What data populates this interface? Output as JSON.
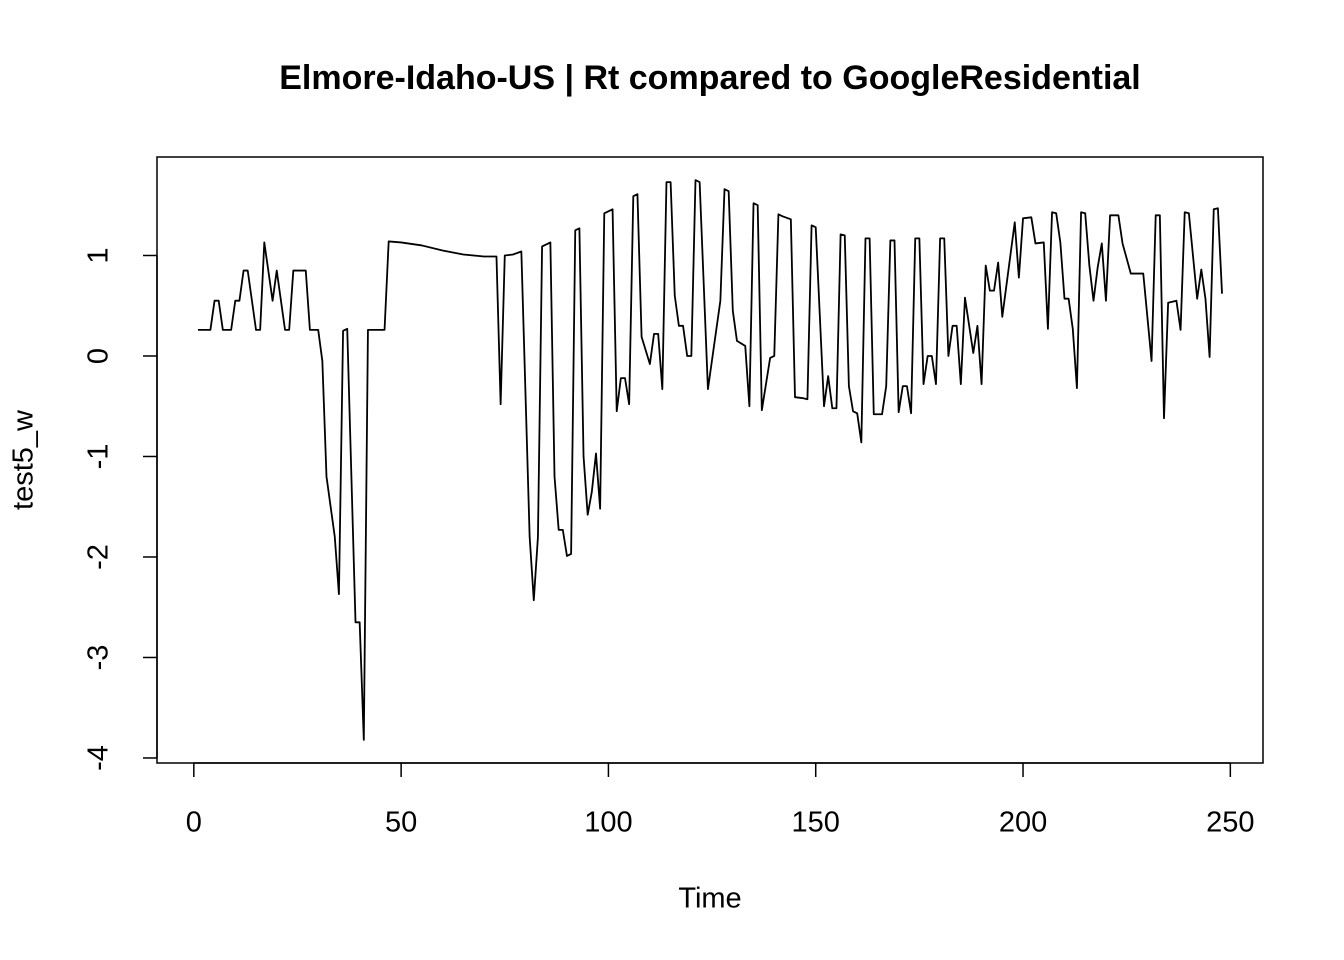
{
  "chart_data": {
    "type": "line",
    "title": "Elmore-Idaho-US | Rt compared to GoogleResidential",
    "x_label": "Time",
    "y_label": "test5_w",
    "xlim": [
      -8.88,
      257.88
    ],
    "ylim": [
      -4.05,
      1.98
    ],
    "xticks": [
      0,
      50,
      100,
      150,
      200,
      250
    ],
    "yticks": [
      -4,
      -3,
      -2,
      -1,
      0,
      1
    ],
    "grid": false,
    "series": [
      {
        "name": "test5_w",
        "color": "#000000",
        "x": [
          1,
          4,
          5,
          6,
          7,
          9,
          10,
          11,
          12,
          13,
          15,
          16,
          17,
          19,
          20,
          22,
          23,
          24,
          27,
          28,
          30,
          31,
          32,
          34,
          35,
          36,
          37,
          39,
          40,
          41,
          42,
          46,
          47,
          50,
          55,
          60,
          65,
          70,
          73,
          74,
          75,
          77,
          79,
          81,
          82,
          83,
          84,
          86,
          87,
          88,
          89,
          90,
          91,
          92,
          93,
          94,
          95,
          96,
          97,
          98,
          99,
          101,
          102,
          103,
          104,
          105,
          106,
          107,
          108,
          110,
          111,
          112,
          113,
          114,
          115,
          116,
          117,
          118,
          119,
          120,
          121,
          122,
          124,
          127,
          128,
          129,
          130,
          131,
          133,
          134,
          135,
          136,
          137,
          139,
          140,
          141,
          142,
          144,
          145,
          147,
          148,
          149,
          150,
          152,
          153,
          154,
          155,
          156,
          157,
          158,
          159,
          160,
          161,
          162,
          163,
          164,
          166,
          167,
          168,
          169,
          170,
          171,
          172,
          173,
          174,
          175,
          176,
          177,
          178,
          179,
          180,
          181,
          182,
          183,
          184,
          185,
          186,
          188,
          189,
          190,
          191,
          192,
          193,
          194,
          195,
          198,
          199,
          200,
          202,
          203,
          205,
          206,
          207,
          208,
          209,
          210,
          211,
          212,
          213,
          214,
          215,
          216,
          217,
          218,
          219,
          220,
          221,
          223,
          224,
          226,
          228,
          229,
          231,
          232,
          233,
          234,
          235,
          237,
          238,
          239,
          240,
          242,
          243,
          244,
          245,
          246,
          247,
          248
        ],
        "values": [
          0.26,
          0.26,
          0.55,
          0.55,
          0.26,
          0.26,
          0.55,
          0.55,
          0.85,
          0.85,
          0.26,
          0.26,
          1.13,
          0.55,
          0.85,
          0.26,
          0.26,
          0.85,
          0.85,
          0.26,
          0.26,
          -0.05,
          -1.2,
          -1.8,
          -2.37,
          0.25,
          0.27,
          -2.65,
          -2.65,
          -3.82,
          0.26,
          0.26,
          1.14,
          1.13,
          1.1,
          1.05,
          1.01,
          0.99,
          0.99,
          -0.48,
          1.0,
          1.01,
          1.04,
          -1.8,
          -2.43,
          -1.8,
          1.09,
          1.13,
          -1.2,
          -1.73,
          -1.73,
          -1.99,
          -1.97,
          1.25,
          1.27,
          -1.0,
          -1.58,
          -1.35,
          -0.97,
          -1.52,
          1.42,
          1.46,
          -0.55,
          -0.22,
          -0.22,
          -0.48,
          1.59,
          1.61,
          0.19,
          -0.08,
          0.22,
          0.22,
          -0.33,
          1.73,
          1.73,
          0.6,
          0.3,
          0.3,
          0.0,
          0.0,
          1.75,
          1.73,
          -0.33,
          0.55,
          1.66,
          1.64,
          0.45,
          0.15,
          0.1,
          -0.5,
          1.52,
          1.5,
          -0.54,
          -0.02,
          0.0,
          1.41,
          1.39,
          1.36,
          -0.41,
          -0.42,
          -0.43,
          1.3,
          1.28,
          -0.5,
          -0.2,
          -0.52,
          -0.52,
          1.21,
          1.2,
          -0.3,
          -0.55,
          -0.57,
          -0.86,
          1.17,
          1.17,
          -0.58,
          -0.58,
          -0.3,
          1.15,
          1.15,
          -0.56,
          -0.3,
          -0.3,
          -0.57,
          1.17,
          1.17,
          -0.28,
          0.0,
          0.0,
          -0.28,
          1.17,
          1.17,
          0.0,
          0.3,
          0.3,
          -0.28,
          0.58,
          0.03,
          0.3,
          -0.28,
          0.9,
          0.65,
          0.65,
          0.93,
          0.39,
          1.33,
          0.78,
          1.37,
          1.38,
          1.12,
          1.13,
          0.27,
          1.43,
          1.42,
          1.13,
          0.57,
          0.57,
          0.27,
          -0.32,
          1.43,
          1.42,
          0.9,
          0.55,
          0.88,
          1.12,
          0.55,
          1.4,
          1.4,
          1.12,
          0.82,
          0.82,
          0.82,
          -0.05,
          1.4,
          1.4,
          -0.62,
          0.53,
          0.55,
          0.26,
          1.43,
          1.42,
          0.57,
          0.86,
          0.57,
          -0.01,
          1.46,
          1.47,
          0.62
        ]
      }
    ]
  }
}
